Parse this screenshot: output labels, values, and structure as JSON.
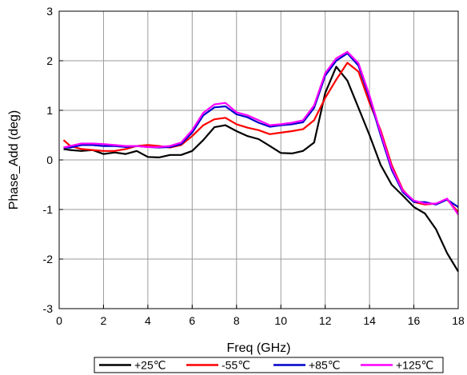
{
  "chart_data": {
    "type": "line",
    "xlabel": "Freq (GHz)",
    "ylabel": "Phase_Add (deg)",
    "xlim": [
      0,
      18
    ],
    "ylim": [
      -3,
      3
    ],
    "xticks": [
      0,
      2,
      4,
      6,
      8,
      10,
      12,
      14,
      16,
      18
    ],
    "yticks": [
      -3,
      -2,
      -1,
      0,
      1,
      2,
      3
    ],
    "grid": true,
    "legend": "bottom",
    "series": [
      {
        "name": "+25℃",
        "color": "#000000",
        "x": [
          0.2,
          0.5,
          1.0,
          1.5,
          2.0,
          2.5,
          3.0,
          3.5,
          4.0,
          4.5,
          5.0,
          5.5,
          6.0,
          6.5,
          7.0,
          7.5,
          8.0,
          8.5,
          9.0,
          9.5,
          10.0,
          10.5,
          11.0,
          11.5,
          12.0,
          12.5,
          13.0,
          13.5,
          14.0,
          14.5,
          15.0,
          15.5,
          16.0,
          16.5,
          17.0,
          17.5,
          18.0
        ],
        "y": [
          0.22,
          0.2,
          0.18,
          0.2,
          0.12,
          0.15,
          0.12,
          0.18,
          0.06,
          0.05,
          0.1,
          0.1,
          0.18,
          0.4,
          0.66,
          0.7,
          0.58,
          0.48,
          0.42,
          0.28,
          0.14,
          0.13,
          0.18,
          0.35,
          1.35,
          1.88,
          1.6,
          1.05,
          0.5,
          -0.1,
          -0.5,
          -0.72,
          -0.95,
          -1.08,
          -1.4,
          -1.88,
          -2.25
        ]
      },
      {
        "name": "-55℃",
        "color": "#ff0000",
        "x": [
          0.2,
          0.5,
          1.0,
          1.5,
          2.0,
          2.5,
          3.0,
          3.5,
          4.0,
          4.5,
          5.0,
          5.5,
          6.0,
          6.5,
          7.0,
          7.5,
          8.0,
          8.5,
          9.0,
          9.5,
          10.0,
          10.5,
          11.0,
          11.5,
          12.0,
          12.5,
          13.0,
          13.5,
          14.0,
          14.5,
          15.0,
          15.5,
          16.0,
          16.5,
          17.0,
          17.5,
          18.0
        ],
        "y": [
          0.4,
          0.28,
          0.22,
          0.2,
          0.18,
          0.18,
          0.22,
          0.28,
          0.3,
          0.28,
          0.25,
          0.3,
          0.48,
          0.7,
          0.82,
          0.85,
          0.72,
          0.65,
          0.6,
          0.52,
          0.55,
          0.58,
          0.62,
          0.8,
          1.25,
          1.62,
          1.96,
          1.78,
          1.15,
          0.6,
          -0.1,
          -0.6,
          -0.85,
          -0.9,
          -0.88,
          -0.8,
          -1.05
        ]
      },
      {
        "name": "+85℃",
        "color": "#0000cc",
        "x": [
          0.2,
          0.5,
          1.0,
          1.5,
          2.0,
          2.5,
          3.0,
          3.5,
          4.0,
          4.5,
          5.0,
          5.5,
          6.0,
          6.5,
          7.0,
          7.5,
          8.0,
          8.5,
          9.0,
          9.5,
          10.0,
          10.5,
          11.0,
          11.5,
          12.0,
          12.5,
          13.0,
          13.5,
          14.0,
          14.5,
          15.0,
          15.5,
          16.0,
          16.5,
          17.0,
          17.5,
          18.0
        ],
        "y": [
          0.25,
          0.25,
          0.3,
          0.3,
          0.28,
          0.28,
          0.26,
          0.28,
          0.26,
          0.25,
          0.26,
          0.32,
          0.55,
          0.9,
          1.06,
          1.08,
          0.92,
          0.86,
          0.75,
          0.67,
          0.7,
          0.72,
          0.76,
          1.05,
          1.7,
          2.0,
          2.15,
          1.9,
          1.25,
          0.5,
          -0.2,
          -0.65,
          -0.85,
          -0.85,
          -0.9,
          -0.8,
          -0.95
        ]
      },
      {
        "name": "+125℃",
        "color": "#ff00ff",
        "x": [
          0.2,
          0.5,
          1.0,
          1.5,
          2.0,
          2.5,
          3.0,
          3.5,
          4.0,
          4.5,
          5.0,
          5.5,
          6.0,
          6.5,
          7.0,
          7.5,
          8.0,
          8.5,
          9.0,
          9.5,
          10.0,
          10.5,
          11.0,
          11.5,
          12.0,
          12.5,
          13.0,
          13.5,
          14.0,
          14.5,
          15.0,
          15.5,
          16.0,
          16.5,
          17.0,
          17.5,
          18.0
        ],
        "y": [
          0.25,
          0.28,
          0.33,
          0.33,
          0.32,
          0.3,
          0.28,
          0.28,
          0.26,
          0.26,
          0.28,
          0.35,
          0.6,
          0.95,
          1.12,
          1.15,
          0.96,
          0.9,
          0.8,
          0.7,
          0.72,
          0.75,
          0.8,
          1.1,
          1.75,
          2.05,
          2.18,
          1.95,
          1.3,
          0.55,
          -0.15,
          -0.62,
          -0.82,
          -0.88,
          -0.88,
          -0.78,
          -1.1
        ]
      }
    ]
  }
}
